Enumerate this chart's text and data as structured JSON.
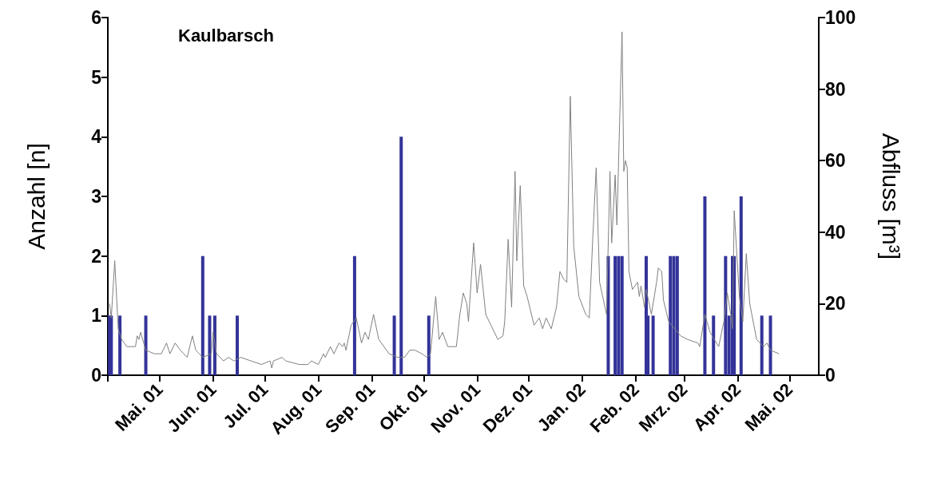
{
  "chart_data": {
    "type": "bar",
    "title": "Kaulbarsch",
    "ylabel": "Anzahl [n]",
    "y2label": "Abfluss [m³]",
    "xlim": [
      "2001-04-01",
      "2002-05-18"
    ],
    "xticks": [
      {
        "value": "2001-04-01",
        "label": null
      },
      {
        "value": "2001-05-01",
        "label": "Mai. 01"
      },
      {
        "value": "2001-06-01",
        "label": "Jun. 01"
      },
      {
        "value": "2001-07-01",
        "label": "Jul. 01"
      },
      {
        "value": "2001-08-01",
        "label": "Aug. 01"
      },
      {
        "value": "2001-09-01",
        "label": "Sep. 01"
      },
      {
        "value": "2001-10-01",
        "label": "Okt. 01"
      },
      {
        "value": "2001-11-01",
        "label": "Nov. 01"
      },
      {
        "value": "2001-12-01",
        "label": "Dez. 01"
      },
      {
        "value": "2002-01-01",
        "label": "Jan. 02"
      },
      {
        "value": "2002-02-01",
        "label": "Feb. 02"
      },
      {
        "value": "2002-03-01",
        "label": "Mrz. 02"
      },
      {
        "value": "2002-04-01",
        "label": "Apr. 02"
      },
      {
        "value": "2002-05-01",
        "label": "Mai. 02"
      }
    ],
    "ylim": [
      0,
      6
    ],
    "yticks": [
      0,
      1,
      2,
      3,
      4,
      5,
      6
    ],
    "y2lim": [
      0,
      100
    ],
    "y2ticks": [
      0,
      20,
      40,
      60,
      80,
      100
    ],
    "series": [
      {
        "color": "#333399",
        "x": [
          "2001-04-02",
          "2001-04-03",
          "2001-04-08",
          "2001-04-23",
          "2001-05-26",
          "2001-05-30",
          "2001-06-02",
          "2001-06-15",
          "2001-08-22",
          "2001-09-14",
          "2001-09-18",
          "2001-10-04",
          "2002-01-16",
          "2002-01-20",
          "2002-01-22",
          "2002-01-24",
          "2002-02-07",
          "2002-02-08",
          "2002-02-11",
          "2002-02-21",
          "2002-02-23",
          "2002-02-25",
          "2002-03-13",
          "2002-03-18",
          "2002-03-25",
          "2002-03-27",
          "2002-03-29",
          "2002-03-30",
          "2002-04-03",
          "2002-04-15",
          "2002-04-20"
        ],
        "values": [
          1,
          1,
          1,
          1,
          2,
          1,
          1,
          1,
          2,
          1,
          4,
          1,
          2,
          2,
          2,
          2,
          2,
          1,
          1,
          2,
          2,
          2,
          3,
          1,
          2,
          1,
          2,
          2,
          3,
          1,
          1
        ]
      },
      {
        "type": "line",
        "axis": "y2",
        "color": "#808080",
        "x": [
          "2001-04-02",
          "2001-04-03",
          "2001-04-05",
          "2001-04-07",
          "2001-04-09",
          "2001-04-12",
          "2001-04-17",
          "2001-04-18",
          "2001-04-19",
          "2001-04-20",
          "2001-04-23",
          "2001-04-28",
          "2001-05-02",
          "2001-05-05",
          "2001-05-07",
          "2001-05-10",
          "2001-05-13",
          "2001-05-17",
          "2001-05-20",
          "2001-05-22",
          "2001-05-26",
          "2001-05-31",
          "2001-06-01",
          "2001-06-03",
          "2001-06-07",
          "2001-06-10",
          "2001-06-13",
          "2001-06-17",
          "2001-06-23",
          "2001-06-29",
          "2001-07-04",
          "2001-07-05",
          "2001-07-06",
          "2001-07-11",
          "2001-07-13",
          "2001-07-21",
          "2001-07-26",
          "2001-07-28",
          "2001-08-01",
          "2001-08-04",
          "2001-08-05",
          "2001-08-08",
          "2001-08-10",
          "2001-08-13",
          "2001-08-15",
          "2001-08-16",
          "2001-08-17",
          "2001-08-20",
          "2001-08-23",
          "2001-08-26",
          "2001-08-28",
          "2001-08-30",
          "2001-09-02",
          "2001-09-05",
          "2001-09-11",
          "2001-09-16",
          "2001-09-20",
          "2001-09-23",
          "2001-09-26",
          "2001-09-30",
          "2001-10-03",
          "2001-10-05",
          "2001-10-08",
          "2001-10-10",
          "2001-10-12",
          "2001-10-15",
          "2001-10-20",
          "2001-10-22",
          "2001-10-24",
          "2001-10-26",
          "2001-10-27",
          "2001-10-30",
          "2001-11-01",
          "2001-11-03",
          "2001-11-06",
          "2001-11-09",
          "2001-11-13",
          "2001-11-16",
          "2001-11-17",
          "2001-11-19",
          "2001-11-21",
          "2001-11-23",
          "2001-11-24",
          "2001-11-26",
          "2001-11-28",
          "2001-11-30",
          "2001-12-04",
          "2001-12-07",
          "2001-12-09",
          "2001-12-11",
          "2001-12-14",
          "2001-12-17",
          "2001-12-19",
          "2001-12-21",
          "2001-12-23",
          "2001-12-25",
          "2001-12-27",
          "2001-12-30",
          "2002-01-03",
          "2002-01-05",
          "2002-01-07",
          "2002-01-09",
          "2002-01-11",
          "2002-01-15",
          "2002-01-17",
          "2002-01-18",
          "2002-01-20",
          "2002-01-21",
          "2002-01-24",
          "2002-01-25",
          "2002-01-26",
          "2002-01-27",
          "2002-01-28",
          "2002-01-30",
          "2002-02-02",
          "2002-02-03",
          "2002-02-04",
          "2002-02-06",
          "2002-02-07",
          "2002-02-10",
          "2002-02-13",
          "2002-02-14",
          "2002-02-16",
          "2002-02-17",
          "2002-02-20",
          "2002-02-27",
          "2002-03-03",
          "2002-03-09",
          "2002-03-10",
          "2002-03-13",
          "2002-03-16",
          "2002-03-21",
          "2002-03-24",
          "2002-03-26",
          "2002-03-28",
          "2002-03-29",
          "2002-03-30",
          "2002-04-02",
          "2002-04-04",
          "2002-04-06",
          "2002-04-08",
          "2002-04-12",
          "2002-04-16",
          "2002-04-18",
          "2002-04-20",
          "2002-04-25"
        ],
        "values": [
          20,
          16,
          32,
          13,
          10,
          8,
          8,
          11,
          10,
          12,
          7,
          6,
          6,
          9,
          6,
          9,
          7,
          5,
          11,
          7,
          5,
          6,
          12,
          6,
          4,
          5,
          4,
          5,
          4,
          3,
          4,
          2,
          4,
          5,
          4,
          3,
          3,
          4,
          3,
          6,
          5,
          8,
          6,
          9,
          8,
          9,
          7,
          14,
          16,
          9,
          12,
          10,
          17,
          10,
          6,
          5,
          5,
          7,
          7,
          6,
          5,
          6,
          22,
          10,
          12,
          8,
          8,
          17,
          23,
          20,
          15,
          37,
          23,
          31,
          17,
          14,
          10,
          11,
          15,
          38,
          19,
          57,
          32,
          53,
          25,
          22,
          14,
          16,
          13,
          16,
          13,
          19,
          29,
          27,
          26,
          78,
          36,
          22,
          17,
          16,
          38,
          58,
          26,
          17,
          57,
          37,
          56,
          42,
          96,
          57,
          60,
          58,
          29,
          24,
          26,
          22,
          25,
          19,
          24,
          17,
          26,
          30,
          29,
          21,
          15,
          11,
          10,
          9,
          8,
          17,
          12,
          8,
          15,
          23,
          17,
          13,
          46,
          22,
          15,
          34,
          20,
          10,
          8,
          9,
          7,
          6
        ]
      }
    ]
  }
}
